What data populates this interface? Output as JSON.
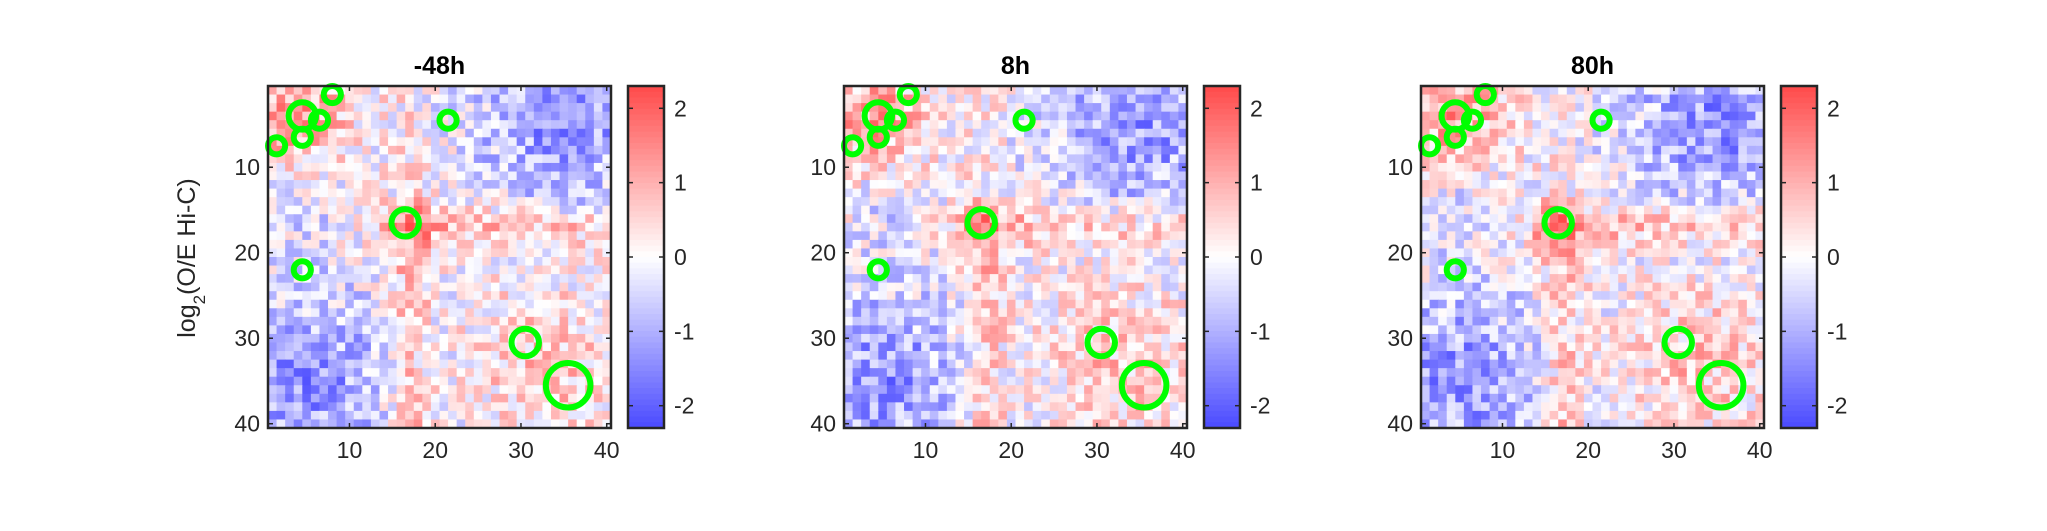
{
  "chart_data": [
    {
      "type": "heatmap",
      "title": "-48h",
      "ylabel_prefix": "log",
      "ylabel_subscript": "2",
      "ylabel_suffix": "(O/E Hi-C)",
      "x_ticks": [
        10,
        20,
        30,
        40
      ],
      "y_ticks": [
        10,
        20,
        30,
        40
      ],
      "grid_size": 40,
      "colorbar_ticks": [
        2,
        1,
        0,
        -1,
        -2
      ],
      "clim": [
        -2.3,
        2.3
      ],
      "colormap": [
        "#4a4aff",
        "#ffffff",
        "#ff4a4a"
      ],
      "marker_color": "#00ff00",
      "markers": [
        {
          "x": 8,
          "y": 1.5,
          "r": 1.0
        },
        {
          "x": 4.5,
          "y": 4,
          "r": 1.6
        },
        {
          "x": 6.5,
          "y": 4.5,
          "r": 1.0
        },
        {
          "x": 4.5,
          "y": 6.5,
          "r": 1.0
        },
        {
          "x": 1.5,
          "y": 7.5,
          "r": 1.0
        },
        {
          "x": 21.5,
          "y": 4.5,
          "r": 1.0
        },
        {
          "x": 16.5,
          "y": 16.5,
          "r": 1.6
        },
        {
          "x": 4.5,
          "y": 22,
          "r": 1.0
        },
        {
          "x": 30.5,
          "y": 30.5,
          "r": 1.6
        },
        {
          "x": 35.5,
          "y": 35.5,
          "r": 2.6
        }
      ]
    },
    {
      "type": "heatmap",
      "title": "8h",
      "x_ticks": [
        10,
        20,
        30,
        40
      ],
      "y_ticks": [
        10,
        20,
        30,
        40
      ],
      "grid_size": 40,
      "colorbar_ticks": [
        2,
        1,
        0,
        -1,
        -2
      ],
      "clim": [
        -2.3,
        2.3
      ],
      "colormap": [
        "#4a4aff",
        "#ffffff",
        "#ff4a4a"
      ],
      "marker_color": "#00ff00",
      "markers": [
        {
          "x": 8,
          "y": 1.5,
          "r": 1.0
        },
        {
          "x": 4.5,
          "y": 4,
          "r": 1.6
        },
        {
          "x": 6.5,
          "y": 4.5,
          "r": 1.0
        },
        {
          "x": 4.5,
          "y": 6.5,
          "r": 1.0
        },
        {
          "x": 1.5,
          "y": 7.5,
          "r": 1.0
        },
        {
          "x": 21.5,
          "y": 4.5,
          "r": 1.0
        },
        {
          "x": 16.5,
          "y": 16.5,
          "r": 1.6
        },
        {
          "x": 4.5,
          "y": 22,
          "r": 1.0
        },
        {
          "x": 30.5,
          "y": 30.5,
          "r": 1.6
        },
        {
          "x": 35.5,
          "y": 35.5,
          "r": 2.6
        }
      ]
    },
    {
      "type": "heatmap",
      "title": "80h",
      "x_ticks": [
        10,
        20,
        30,
        40
      ],
      "y_ticks": [
        10,
        20,
        30,
        40
      ],
      "grid_size": 40,
      "colorbar_ticks": [
        2,
        1,
        0,
        -1,
        -2
      ],
      "clim": [
        -2.3,
        2.3
      ],
      "colormap": [
        "#4a4aff",
        "#ffffff",
        "#ff4a4a"
      ],
      "marker_color": "#00ff00",
      "markers": [
        {
          "x": 8,
          "y": 1.5,
          "r": 1.0
        },
        {
          "x": 4.5,
          "y": 4,
          "r": 1.6
        },
        {
          "x": 6.5,
          "y": 4.5,
          "r": 1.0
        },
        {
          "x": 4.5,
          "y": 6.5,
          "r": 1.0
        },
        {
          "x": 1.5,
          "y": 7.5,
          "r": 1.0
        },
        {
          "x": 21.5,
          "y": 4.5,
          "r": 1.0
        },
        {
          "x": 16.5,
          "y": 16.5,
          "r": 1.6
        },
        {
          "x": 4.5,
          "y": 22,
          "r": 1.0
        },
        {
          "x": 30.5,
          "y": 30.5,
          "r": 1.6
        },
        {
          "x": 35.5,
          "y": 35.5,
          "r": 2.6
        }
      ]
    }
  ]
}
